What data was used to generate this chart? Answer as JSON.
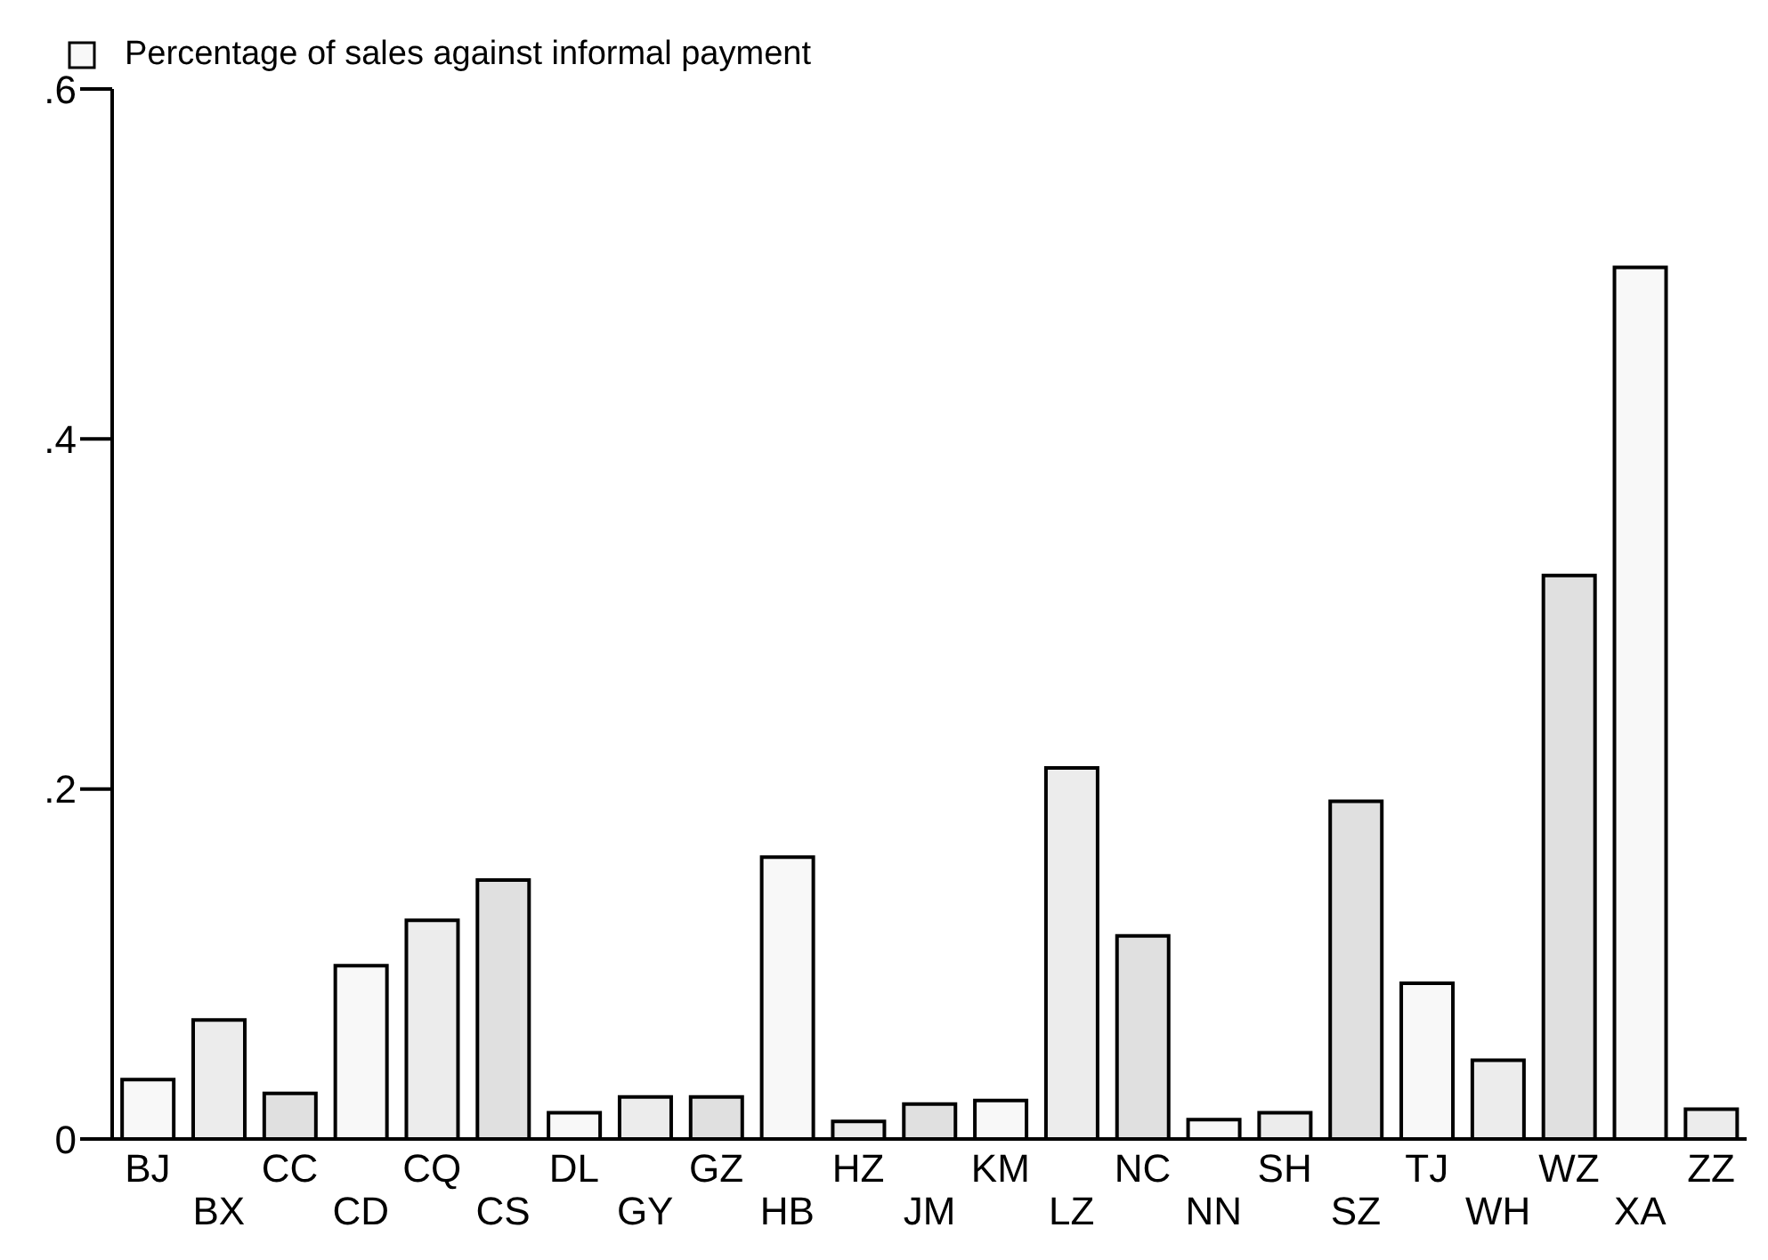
{
  "chart_data": {
    "type": "bar",
    "categories": [
      "BJ",
      "BX",
      "CC",
      "CD",
      "CQ",
      "CS",
      "DL",
      "GY",
      "GZ",
      "HB",
      "HZ",
      "JM",
      "KM",
      "LZ",
      "NC",
      "NN",
      "SH",
      "SZ",
      "TJ",
      "WH",
      "WZ",
      "XA",
      "ZZ"
    ],
    "series": [
      {
        "name": "Percentage of sales against informal payment",
        "values": [
          0.034,
          0.068,
          0.026,
          0.099,
          0.125,
          0.148,
          0.015,
          0.024,
          0.024,
          0.161,
          0.01,
          0.02,
          0.022,
          0.212,
          0.116,
          0.011,
          0.015,
          0.193,
          0.089,
          0.045,
          0.322,
          0.498,
          0.017
        ],
        "colors": [
          "#f8f8f8",
          "#ececec",
          "#e0e0e0",
          "#f8f8f8",
          "#ececec",
          "#e0e0e0",
          "#f8f8f8",
          "#ececec",
          "#e0e0e0",
          "#f8f8f8",
          "#ececec",
          "#e0e0e0",
          "#f8f8f8",
          "#ececec",
          "#e0e0e0",
          "#f8f8f8",
          "#ececec",
          "#e0e0e0",
          "#f8f8f8",
          "#ececec",
          "#e0e0e0",
          "#f8f8f8",
          "#ececec"
        ]
      }
    ],
    "ylim": [
      0,
      0.6
    ],
    "yticks": [
      {
        "value": 0,
        "label": "0"
      },
      {
        "value": 0.2,
        "label": ".2"
      },
      {
        "value": 0.4,
        "label": ".4"
      },
      {
        "value": 0.6,
        "label": ".6"
      }
    ],
    "grid": false,
    "legend": "top left"
  }
}
